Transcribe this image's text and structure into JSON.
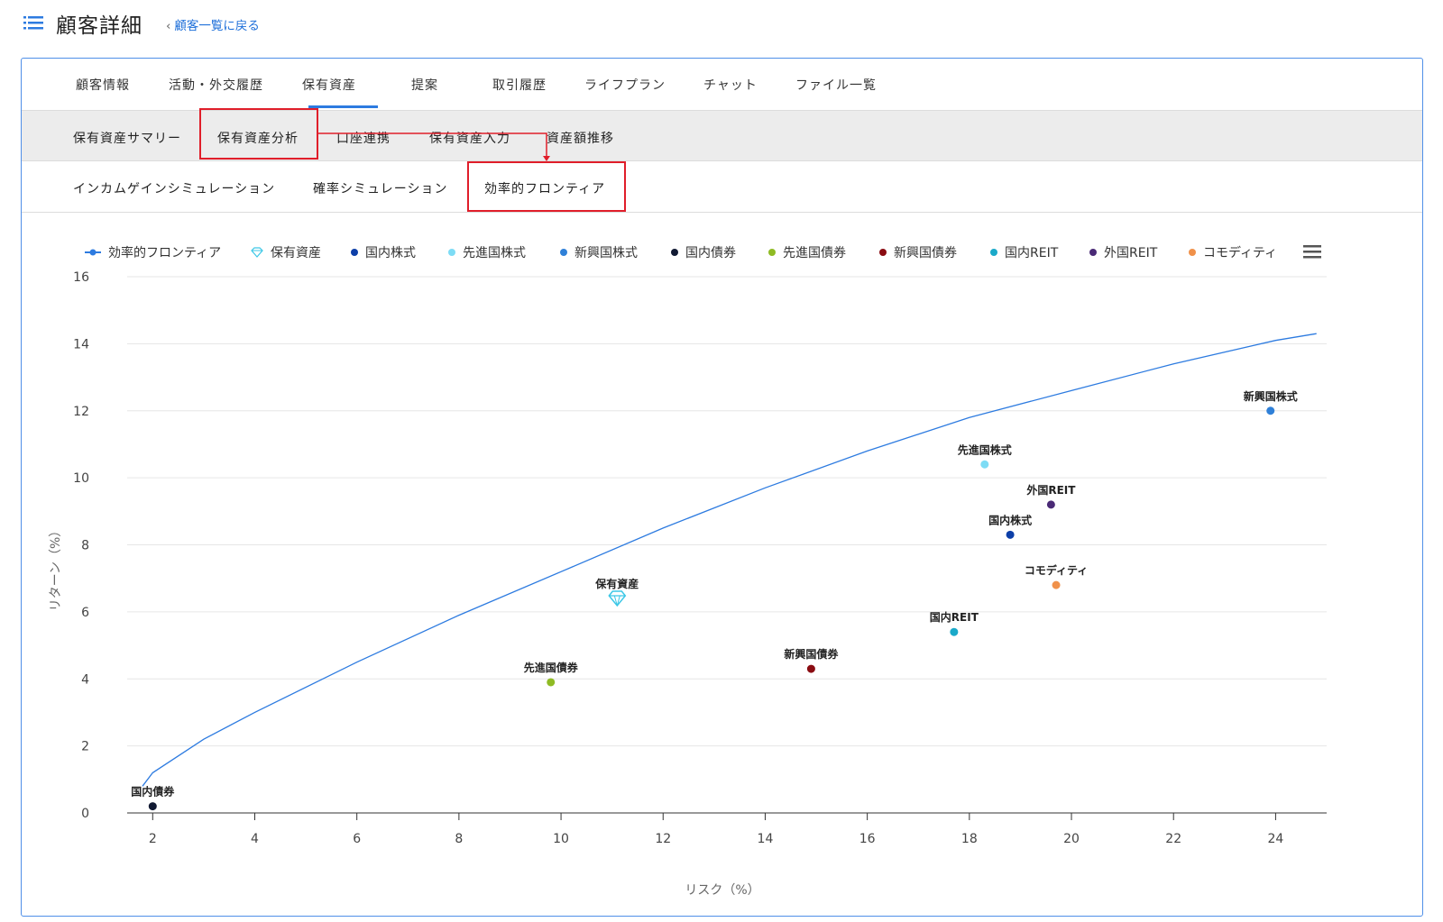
{
  "header": {
    "title": "顧客詳細",
    "back_link": "顧客一覧に戻る"
  },
  "tabs": [
    {
      "label": "顧客情報"
    },
    {
      "label": "活動・外交履歴"
    },
    {
      "label": "保有資産"
    },
    {
      "label": "提案"
    },
    {
      "label": "取引履歴"
    },
    {
      "label": "ライフプラン"
    },
    {
      "label": "チャット"
    },
    {
      "label": "ファイル一覧"
    }
  ],
  "subtabs": [
    {
      "label": "保有資産サマリー"
    },
    {
      "label": "保有資産分析"
    },
    {
      "label": "口座連携"
    },
    {
      "label": "保有資産入力"
    },
    {
      "label": "資産額推移"
    }
  ],
  "subtabs2": [
    {
      "label": "インカムゲインシミュレーション"
    },
    {
      "label": "確率シミュレーション"
    },
    {
      "label": "効率的フロンティア"
    }
  ],
  "colors": {
    "accent": "#2d7be0",
    "highlight": "#e01e2a"
  },
  "chart_data": {
    "type": "scatter",
    "xlabel": "リスク（%）",
    "ylabel": "リターン（%）",
    "xlim": [
      1.5,
      25
    ],
    "ylim": [
      0,
      16
    ],
    "x_ticks": [
      2,
      4,
      6,
      8,
      10,
      12,
      14,
      16,
      18,
      20,
      22,
      24
    ],
    "y_ticks": [
      0,
      2,
      4,
      6,
      8,
      10,
      12,
      14,
      16
    ],
    "grid": true,
    "legend_position": "top",
    "frontier": {
      "name": "効率的フロンティア",
      "color": "#2d7be0",
      "points": [
        [
          1.8,
          0.8
        ],
        [
          2.0,
          1.2
        ],
        [
          3.0,
          2.2
        ],
        [
          4.0,
          3.0
        ],
        [
          6.0,
          4.5
        ],
        [
          8.0,
          5.9
        ],
        [
          10.0,
          7.2
        ],
        [
          12.0,
          8.5
        ],
        [
          14.0,
          9.7
        ],
        [
          16.0,
          10.8
        ],
        [
          18.0,
          11.8
        ],
        [
          20.0,
          12.6
        ],
        [
          22.0,
          13.4
        ],
        [
          24.0,
          14.1
        ],
        [
          24.8,
          14.3
        ]
      ]
    },
    "series": [
      {
        "name": "保有資産",
        "x": 11.1,
        "y": 6.4,
        "color": "#3cc7e6",
        "symbol": "diamond"
      },
      {
        "name": "国内株式",
        "x": 18.8,
        "y": 8.3,
        "color": "#0d3fa8",
        "symbol": "dot"
      },
      {
        "name": "先進国株式",
        "x": 18.3,
        "y": 10.4,
        "color": "#7ddcf5",
        "symbol": "dot"
      },
      {
        "name": "新興国株式",
        "x": 23.9,
        "y": 12.0,
        "color": "#2f80d8",
        "symbol": "dot"
      },
      {
        "name": "国内債券",
        "x": 2.0,
        "y": 0.2,
        "color": "#111a33",
        "symbol": "dot"
      },
      {
        "name": "先進国債券",
        "x": 9.8,
        "y": 3.9,
        "color": "#8fbb24",
        "symbol": "dot"
      },
      {
        "name": "新興国債券",
        "x": 14.9,
        "y": 4.3,
        "color": "#8a0c12",
        "symbol": "dot"
      },
      {
        "name": "国内REIT",
        "x": 17.7,
        "y": 5.4,
        "color": "#1aa9c9",
        "symbol": "dot"
      },
      {
        "name": "外国REIT",
        "x": 19.6,
        "y": 9.2,
        "color": "#4a2a76",
        "symbol": "dot"
      },
      {
        "name": "コモディティ",
        "x": 19.7,
        "y": 6.8,
        "color": "#f0914a",
        "symbol": "dot"
      }
    ]
  }
}
